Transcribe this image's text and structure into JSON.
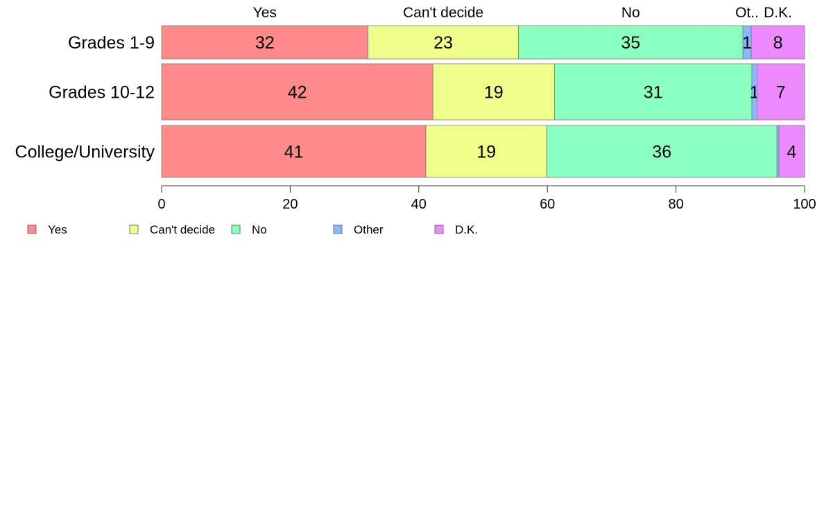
{
  "chart_data": {
    "type": "bar",
    "orientation": "horizontal",
    "stacked": true,
    "title": "",
    "xlabel": "",
    "ylabel": "",
    "xlim": [
      0,
      100
    ],
    "x_ticks": [
      0,
      20,
      40,
      60,
      80,
      100
    ],
    "grid": false,
    "legend_position": "bottom-left",
    "categories": [
      "Grades 1-9",
      "Grades 10-12",
      "College/University"
    ],
    "top_labels": [
      "Yes",
      "Can't decide",
      "No",
      "Ot..",
      "D.K."
    ],
    "series": [
      {
        "name": "Yes",
        "color": "#ff8a8a",
        "values": [
          32.1,
          42.2,
          41.1
        ],
        "labels": [
          "32",
          "42",
          "41"
        ]
      },
      {
        "name": "Can't decide",
        "color": "#eeff8a",
        "values": [
          23.4,
          18.9,
          18.8
        ],
        "labels": [
          "23",
          "19",
          "19"
        ]
      },
      {
        "name": "No",
        "color": "#8affbf",
        "values": [
          34.9,
          30.7,
          35.8
        ],
        "labels": [
          "35",
          "31",
          "36"
        ]
      },
      {
        "name": "Other",
        "color": "#8ab8ff",
        "values": [
          1.3,
          0.8,
          0.3
        ],
        "labels": [
          "1",
          "1",
          ""
        ]
      },
      {
        "name": "D.K.",
        "color": "#ee8aff",
        "values": [
          8.3,
          7.4,
          4.0
        ],
        "labels": [
          "8",
          "7",
          "4"
        ]
      }
    ]
  }
}
